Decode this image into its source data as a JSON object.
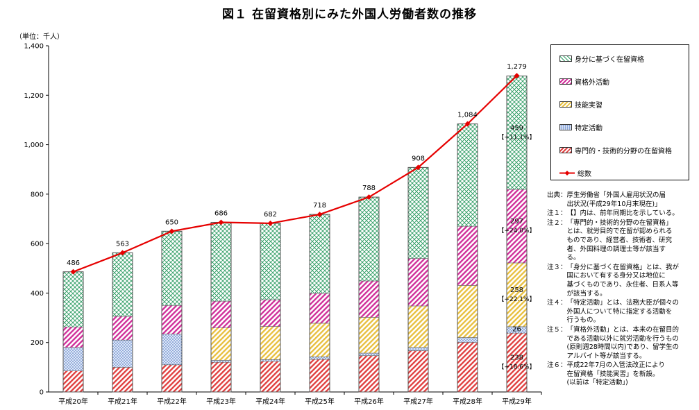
{
  "title": "図１ 在留資格別にみた外国人労働者数の推移",
  "unit": "（単位：千人）",
  "chart_data": {
    "type": "bar",
    "stacked": true,
    "categories": [
      "平成20年",
      "平成21年",
      "平成22年",
      "平成23年",
      "平成24年",
      "平成25年",
      "平成26年",
      "平成27年",
      "平成28年",
      "平成29年"
    ],
    "ylim": [
      0,
      1400
    ],
    "yticks": [
      "0",
      "200",
      "400",
      "600",
      "800",
      "1,000",
      "1,200",
      "1,400"
    ],
    "grid": false,
    "legend_position": "right",
    "series": [
      {
        "name": "専門的・技術的分野の在留資格",
        "values": [
          85,
          100,
          110,
          120,
          124,
          132,
          147,
          167,
          201,
          238
        ],
        "color": "#e04040",
        "pattern": "diag"
      },
      {
        "name": "特定活動",
        "values": [
          95,
          110,
          124,
          8,
          7,
          10,
          10,
          13,
          19,
          26
        ],
        "color": "#5a7fc8",
        "pattern": "dots"
      },
      {
        "name": "技能実習",
        "values": [
          0,
          0,
          0,
          131,
          134,
          136,
          145,
          168,
          211,
          258
        ],
        "color": "#e8c040",
        "pattern": "diag"
      },
      {
        "name": "資格外活動",
        "values": [
          83,
          96,
          116,
          108,
          108,
          121,
          147,
          192,
          239,
          297
        ],
        "color": "#d0309a",
        "pattern": "diag"
      },
      {
        "name": "身分に基づく在留資格",
        "values": [
          223,
          257,
          300,
          319,
          309,
          319,
          339,
          368,
          414,
          459
        ],
        "color": "#2a9a60",
        "pattern": "cross"
      }
    ],
    "total": {
      "name": "総数",
      "values": [
        486,
        563,
        650,
        686,
        682,
        718,
        788,
        908,
        1084,
        1279
      ],
      "labels": [
        "486",
        "563",
        "650",
        "686",
        "682",
        "718",
        "788",
        "908",
        "1,084",
        "1,279"
      ],
      "color": "#e60000"
    },
    "annotations": [
      {
        "series": "身分に基づく在留資格",
        "category": "平成29年",
        "value": "459",
        "change": "【+11.1%】"
      },
      {
        "series": "資格外活動",
        "category": "平成29年",
        "value": "297",
        "change": "【+24.0%】"
      },
      {
        "series": "技能実習",
        "category": "平成29年",
        "value": "258",
        "change": "【+22.1%】"
      },
      {
        "series": "特定活動",
        "category": "平成29年",
        "value": "26",
        "change": ""
      },
      {
        "series": "専門的・技術的分野の在留資格",
        "category": "平成29年",
        "value": "238",
        "change": "【+18.6%】"
      }
    ]
  },
  "legend": [
    {
      "name": "身分に基づく在留資格",
      "color": "#2a9a60",
      "pattern": "cross"
    },
    {
      "name": "資格外活動",
      "color": "#d0309a",
      "pattern": "diag"
    },
    {
      "name": "技能実習",
      "color": "#e8c040",
      "pattern": "diag"
    },
    {
      "name": "特定活動",
      "color": "#5a7fc8",
      "pattern": "dots"
    },
    {
      "name": "専門的・技術的分野の在留資格",
      "color": "#e04040",
      "pattern": "diag"
    },
    {
      "name": "総数",
      "color": "#e60000",
      "pattern": "line"
    }
  ],
  "notes": [
    {
      "label": "出典：",
      "text": "厚生労働省「外国人雇用状況の届\n出状況(平成29年10月末現在)」"
    },
    {
      "label": "注１：",
      "text": "【】内は、前年同期比を示している。"
    },
    {
      "label": "注２：",
      "text": "「専門的・技術的分野の在留資格」\nとは、就労目的で在留が認められる\nものであり、経営者、技術者、研究\n者、外国料理の調理士等が該当す\nる。"
    },
    {
      "label": "注３：",
      "text": "「身分に基づく在留資格」とは、我が\n国において有する身分又は地位に\n基づくものであり、永住者、日系人等\nが該当する。"
    },
    {
      "label": "注４：",
      "text": "「特定活動」とは、法務大臣が個々の\n外国人について特に指定する活動を\n行うもの。"
    },
    {
      "label": "注５：",
      "text": "「資格外活動」とは、本来の在留目的\nである活動以外に就労活動を行うもの\n(原則週28時間以内)であり、留学生の\nアルバイト等が該当する。"
    },
    {
      "label": "注６：",
      "text": "平成22年7月の入管法改正により\n在留資格「技能実習」を新設。\n(以前は「特定活動」)"
    }
  ]
}
